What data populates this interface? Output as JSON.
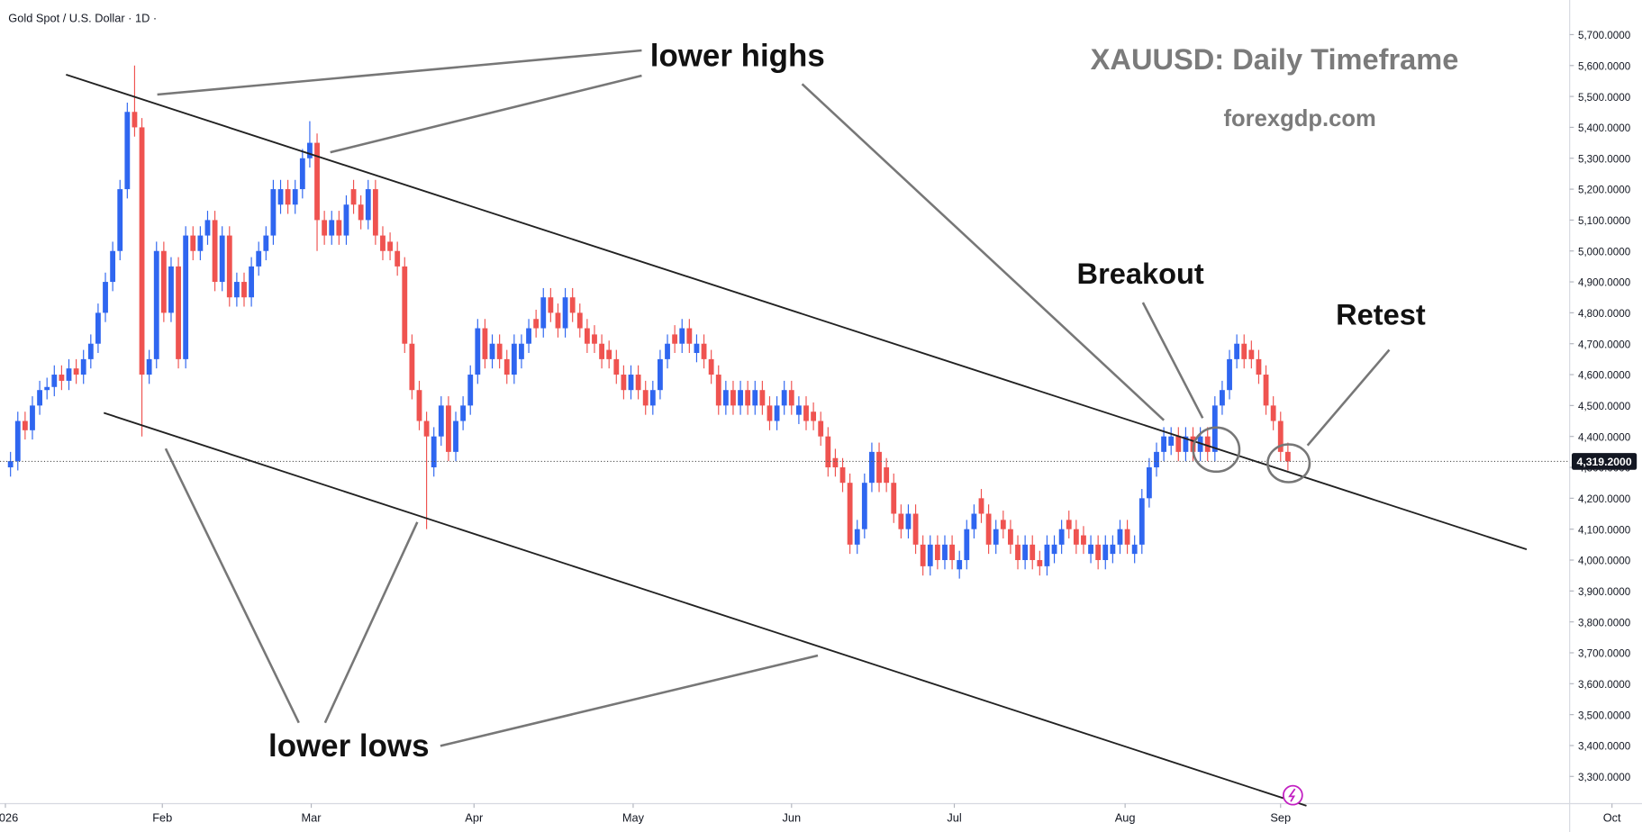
{
  "chart_data": {
    "type": "candlestick",
    "header": "Gold Spot / U.S. Dollar · 1D ·",
    "title": "XAUUSD: Daily Timeframe",
    "subtitle": "forexgdp.com",
    "annotations": [
      "lower highs",
      "Breakout",
      "Retest",
      "lower lows"
    ],
    "up_color": "#2f66f0",
    "down_color": "#ef5350",
    "last_price_label": "4,319.2000",
    "xlim": [
      -1.44,
      213.6
    ],
    "xticks": [
      {
        "value": -0.7,
        "label": "2026"
      },
      {
        "value": 20.8,
        "label": "Feb"
      },
      {
        "value": 41.2,
        "label": "Mar"
      },
      {
        "value": 63.5,
        "label": "Apr"
      },
      {
        "value": 85.3,
        "label": "May"
      },
      {
        "value": 107,
        "label": "Jun"
      },
      {
        "value": 129.3,
        "label": "Jul"
      },
      {
        "value": 152.7,
        "label": "Aug"
      },
      {
        "value": 174,
        "label": "Sep"
      },
      {
        "value": 219.4,
        "label": "Oct"
      }
    ],
    "ylim": [
      3212,
      5812
    ],
    "yticks": [
      {
        "value": 3300,
        "label": "3,300.0000"
      },
      {
        "value": 3400,
        "label": "3,400.0000"
      },
      {
        "value": 3500,
        "label": "3,500.0000"
      },
      {
        "value": 3600,
        "label": "3,600.0000"
      },
      {
        "value": 3700,
        "label": "3,700.0000"
      },
      {
        "value": 3800,
        "label": "3,800.0000"
      },
      {
        "value": 3900,
        "label": "3,900.0000"
      },
      {
        "value": 4000,
        "label": "4,000.0000"
      },
      {
        "value": 4100,
        "label": "4,100.0000"
      },
      {
        "value": 4200,
        "label": "4,200.0000"
      },
      {
        "value": 4300,
        "label": "4,300.0000"
      },
      {
        "value": 4400,
        "label": "4,400.0000"
      },
      {
        "value": 4500,
        "label": "4,500.0000"
      },
      {
        "value": 4600,
        "label": "4,600.0000"
      },
      {
        "value": 4700,
        "label": "4,700.0000"
      },
      {
        "value": 4800,
        "label": "4,800.0000"
      },
      {
        "value": 4900,
        "label": "4,900.0000"
      },
      {
        "value": 5000,
        "label": "5,000.0000"
      },
      {
        "value": 5100,
        "label": "5,100.0000"
      },
      {
        "value": 5200,
        "label": "5,200.0000"
      },
      {
        "value": 5300,
        "label": "5,300.0000"
      },
      {
        "value": 5400,
        "label": "5,400.0000"
      },
      {
        "value": 5500,
        "label": "5,500.0000"
      },
      {
        "value": 5600,
        "label": "5,600.0000"
      },
      {
        "value": 5700,
        "label": "5,700.0000"
      }
    ],
    "open": [
      4300,
      4320,
      4450,
      4420,
      4500,
      4550,
      4560,
      4600,
      4580,
      4620,
      4600,
      4650,
      4700,
      4800,
      4900,
      5000,
      5200,
      5450,
      5400,
      4600,
      4650,
      5000,
      4800,
      4950,
      4650,
      5050,
      5000,
      5050,
      5100,
      4900,
      5050,
      4850,
      4900,
      4850,
      4950,
      5000,
      5050,
      5150,
      5200,
      5150,
      5200,
      5300,
      5350,
      5100,
      5050,
      5100,
      5050,
      5200,
      5150,
      5100,
      5200,
      5050,
      5030,
      5000,
      4950,
      4700,
      4550,
      4450,
      4300,
      4400,
      4500,
      4350,
      4450,
      4500,
      4600,
      4750,
      4650,
      4700,
      4650,
      4600,
      4650,
      4700,
      4780,
      4750,
      4850,
      4800,
      4750,
      4850,
      4800,
      4750,
      4730,
      4700,
      4680,
      4650,
      4600,
      4550,
      4600,
      4550,
      4500,
      4550,
      4650,
      4730,
      4700,
      4750,
      4670,
      4700,
      4650,
      4600,
      4500,
      4550,
      4500,
      4550,
      4500,
      4550,
      4500,
      4450,
      4500,
      4550,
      4470,
      4500,
      4480,
      4450,
      4400,
      4330,
      4300,
      4250,
      4050,
      4100,
      4250,
      4350,
      4300,
      4250,
      4150,
      4100,
      4150,
      4050,
      3980,
      4050,
      4000,
      4050,
      3970,
      4000,
      4100,
      4200,
      4150,
      4050,
      4130,
      4100,
      4050,
      4000,
      4050,
      4000,
      3980,
      4020,
      4050,
      4130,
      4100,
      4080,
      4020,
      4050,
      4000,
      4020,
      4050,
      4100,
      4020,
      4050,
      4200,
      4300,
      4350,
      4370,
      4400,
      4350,
      4400,
      4350,
      4400,
      4350,
      4500,
      4550,
      4650,
      4700,
      4680,
      4650,
      4600,
      4500,
      4450,
      4350
    ],
    "high": [
      4350,
      4480,
      4480,
      4530,
      4580,
      4590,
      4630,
      4630,
      4650,
      4650,
      4680,
      4730,
      4830,
      4930,
      5030,
      5230,
      5480,
      5600,
      5430,
      4680,
      5030,
      5030,
      4980,
      4980,
      5080,
      5080,
      5080,
      5130,
      5130,
      5080,
      5080,
      4930,
      4930,
      4980,
      5030,
      5080,
      5230,
      5230,
      5230,
      5230,
      5330,
      5420,
      5380,
      5130,
      5130,
      5130,
      5180,
      5230,
      5180,
      5230,
      5230,
      5080,
      5060,
      5030,
      4980,
      4730,
      4580,
      4480,
      4430,
      4530,
      4530,
      4480,
      4530,
      4630,
      4780,
      4780,
      4730,
      4730,
      4680,
      4730,
      4730,
      4780,
      4810,
      4880,
      4880,
      4830,
      4880,
      4880,
      4830,
      4780,
      4760,
      4730,
      4710,
      4680,
      4630,
      4630,
      4630,
      4580,
      4580,
      4680,
      4730,
      4760,
      4780,
      4780,
      4730,
      4730,
      4680,
      4630,
      4580,
      4580,
      4580,
      4580,
      4580,
      4580,
      4530,
      4530,
      4580,
      4580,
      4530,
      4530,
      4510,
      4480,
      4430,
      4360,
      4330,
      4280,
      4130,
      4280,
      4380,
      4380,
      4330,
      4280,
      4180,
      4180,
      4180,
      4080,
      4080,
      4080,
      4080,
      4080,
      4030,
      4130,
      4180,
      4230,
      4180,
      4130,
      4160,
      4130,
      4080,
      4080,
      4080,
      4030,
      4080,
      4080,
      4130,
      4160,
      4130,
      4110,
      4080,
      4080,
      4080,
      4080,
      4130,
      4130,
      4080,
      4230,
      4330,
      4380,
      4430,
      4430,
      4430,
      4430,
      4430,
      4430,
      4430,
      4530,
      4580,
      4680,
      4730,
      4730,
      4710,
      4680,
      4630,
      4530,
      4480,
      4380
    ],
    "low": [
      4270,
      4290,
      4390,
      4390,
      4470,
      4520,
      4530,
      4550,
      4550,
      4570,
      4570,
      4620,
      4670,
      4770,
      4870,
      4970,
      5170,
      5370,
      4400,
      4570,
      4620,
      4770,
      4770,
      4620,
      4620,
      4970,
      4970,
      5020,
      4870,
      4870,
      4820,
      4820,
      4820,
      4820,
      4920,
      4970,
      5020,
      5120,
      5120,
      5120,
      5170,
      5270,
      5000,
      5020,
      5020,
      5020,
      5020,
      5120,
      5070,
      5070,
      5020,
      4970,
      4970,
      4920,
      4670,
      4520,
      4420,
      4100,
      4270,
      4370,
      4320,
      4320,
      4420,
      4470,
      4570,
      4620,
      4620,
      4620,
      4570,
      4570,
      4620,
      4670,
      4720,
      4720,
      4770,
      4720,
      4720,
      4770,
      4720,
      4670,
      4670,
      4620,
      4620,
      4570,
      4520,
      4520,
      4520,
      4470,
      4470,
      4520,
      4620,
      4670,
      4670,
      4670,
      4640,
      4620,
      4570,
      4470,
      4470,
      4470,
      4470,
      4470,
      4470,
      4470,
      4420,
      4420,
      4470,
      4470,
      4440,
      4420,
      4420,
      4370,
      4270,
      4270,
      4220,
      4020,
      4020,
      4070,
      4220,
      4220,
      4220,
      4120,
      4070,
      4070,
      4020,
      3950,
      3950,
      3970,
      3970,
      3970,
      3940,
      3970,
      4070,
      4120,
      4020,
      4020,
      4070,
      4020,
      3970,
      3970,
      3970,
      3950,
      3950,
      3990,
      4020,
      4070,
      4020,
      4020,
      3990,
      3970,
      3970,
      3990,
      4020,
      4020,
      3990,
      4020,
      4170,
      4270,
      4320,
      4340,
      4320,
      4320,
      4320,
      4320,
      4320,
      4320,
      4470,
      4520,
      4620,
      4620,
      4620,
      4570,
      4470,
      4420,
      4320,
      4290
    ],
    "close": [
      4320,
      4450,
      4420,
      4500,
      4550,
      4560,
      4600,
      4580,
      4620,
      4600,
      4650,
      4700,
      4800,
      4900,
      5000,
      5200,
      5450,
      5400,
      4600,
      4650,
      5000,
      4800,
      4950,
      4650,
      5050,
      5000,
      5050,
      5100,
      4900,
      5050,
      4850,
      4900,
      4850,
      4950,
      5000,
      5050,
      5200,
      5200,
      5150,
      5200,
      5300,
      5350,
      5100,
      5050,
      5100,
      5050,
      5150,
      5150,
      5100,
      5200,
      5050,
      5000,
      5000,
      4950,
      4700,
      4550,
      4450,
      4400,
      4400,
      4500,
      4350,
      4450,
      4500,
      4600,
      4750,
      4650,
      4700,
      4650,
      4600,
      4700,
      4700,
      4750,
      4750,
      4850,
      4800,
      4750,
      4850,
      4800,
      4750,
      4700,
      4700,
      4650,
      4650,
      4600,
      4550,
      4600,
      4550,
      4500,
      4550,
      4650,
      4700,
      4700,
      4750,
      4700,
      4700,
      4650,
      4600,
      4500,
      4550,
      4500,
      4550,
      4500,
      4550,
      4500,
      4450,
      4500,
      4550,
      4500,
      4500,
      4450,
      4450,
      4400,
      4300,
      4300,
      4250,
      4050,
      4100,
      4250,
      4350,
      4250,
      4250,
      4150,
      4100,
      4150,
      4050,
      3980,
      4050,
      4000,
      4050,
      4000,
      4000,
      4100,
      4150,
      4150,
      4050,
      4100,
      4100,
      4050,
      4000,
      4050,
      4000,
      3980,
      4050,
      4050,
      4100,
      4100,
      4050,
      4050,
      4050,
      4000,
      4050,
      4050,
      4100,
      4050,
      4050,
      4200,
      4300,
      4350,
      4400,
      4400,
      4350,
      4400,
      4350,
      4400,
      4350,
      4500,
      4550,
      4650,
      4700,
      4650,
      4650,
      4600,
      4500,
      4450,
      4350,
      4319.2
    ]
  }
}
